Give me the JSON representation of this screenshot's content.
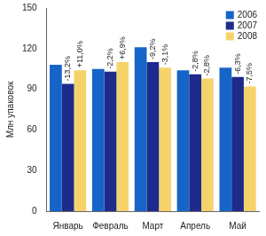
{
  "chart_data": {
    "type": "bar",
    "categories": [
      "Январь",
      "Февраль",
      "Март",
      "Апрель",
      "Май"
    ],
    "series": [
      {
        "name": "2006",
        "color": "#1764c8",
        "values": [
          108,
          105,
          121,
          104,
          106
        ]
      },
      {
        "name": "2007",
        "color": "#1e2a8c",
        "values": [
          94,
          103,
          110,
          101,
          99
        ]
      },
      {
        "name": "2008",
        "color": "#f6d36a",
        "values": [
          104,
          110,
          106,
          98,
          92
        ]
      }
    ],
    "y_label": "Млн упаковок",
    "ylim": [
      0,
      150
    ],
    "yticks": [
      0,
      30,
      60,
      90,
      120,
      150
    ],
    "grid": false,
    "legend": "upper right",
    "annotations": [
      {
        "category": "Январь",
        "series": "2007",
        "text": "-13,2%"
      },
      {
        "category": "Январь",
        "series": "2008",
        "text": "+11,0%"
      },
      {
        "category": "Февраль",
        "series": "2007",
        "text": "-2,2%"
      },
      {
        "category": "Февраль",
        "series": "2008",
        "text": "+6,9%"
      },
      {
        "category": "Март",
        "series": "2007",
        "text": "-9,2%"
      },
      {
        "category": "Март",
        "series": "2008",
        "text": "-3,1%"
      },
      {
        "category": "Апрель",
        "series": "2007",
        "text": "-2,8%"
      },
      {
        "category": "Апрель",
        "series": "2008",
        "text": "-2,8%"
      },
      {
        "category": "Май",
        "series": "2007",
        "text": "-6,3%"
      },
      {
        "category": "Май",
        "series": "2008",
        "text": "-7,5%"
      }
    ]
  }
}
